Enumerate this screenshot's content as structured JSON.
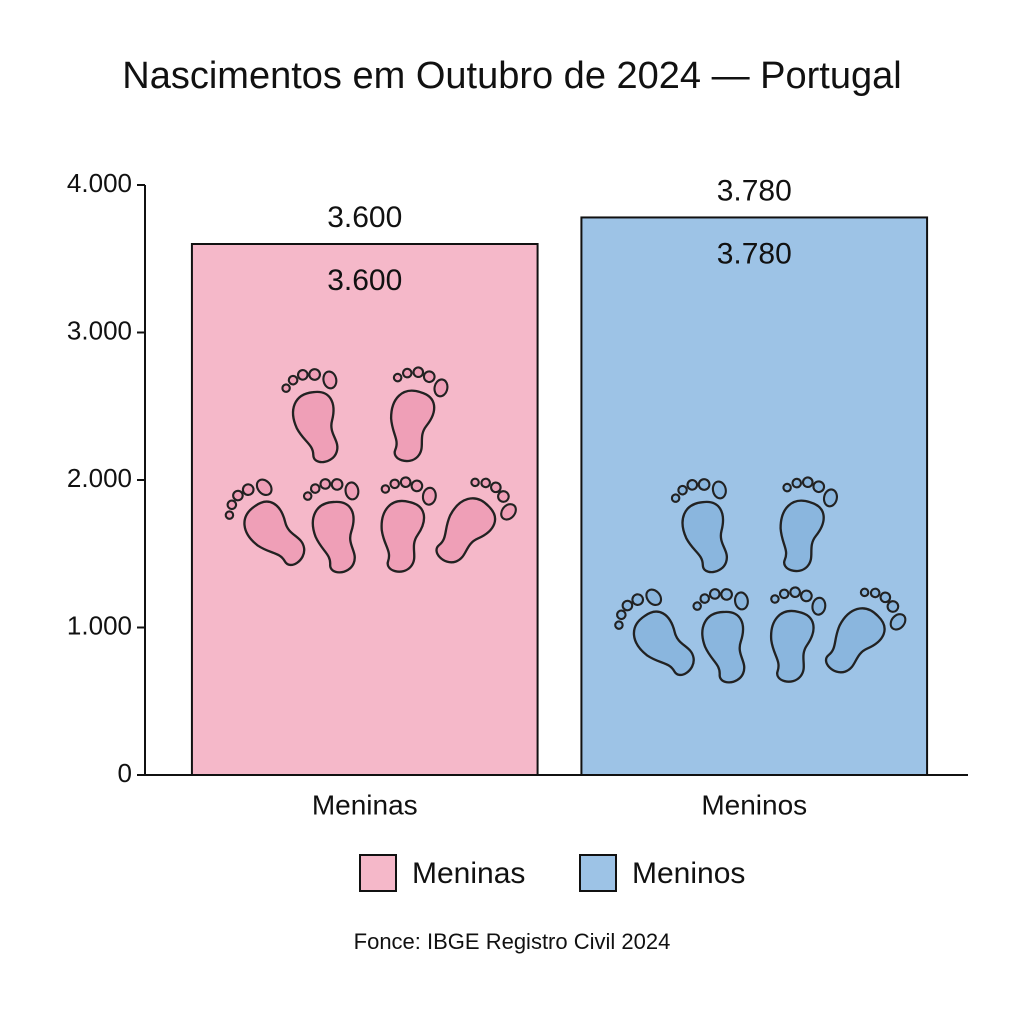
{
  "chart_data": {
    "type": "bar",
    "title": "Nascimentos em Outubro de 2024 — Portugal",
    "categories": [
      "Meninas",
      "Meninos"
    ],
    "values": [
      3600,
      3780
    ],
    "value_labels": [
      "3.600",
      "3.780"
    ],
    "colors": [
      "#f5b8c9",
      "#9dc3e6"
    ],
    "ylim": [
      0,
      4000
    ],
    "yticks": [
      0,
      {
        "value": 1000,
        "label": "1.000"
      },
      {
        "value": 2000,
        "label": "2.000"
      },
      {
        "value": 3000,
        "label": "3.000"
      },
      {
        "value": 4000,
        "label": "4.000"
      }
    ],
    "legend": "bottom",
    "source": "Fonce: IBGE Registro Civil 2024"
  }
}
